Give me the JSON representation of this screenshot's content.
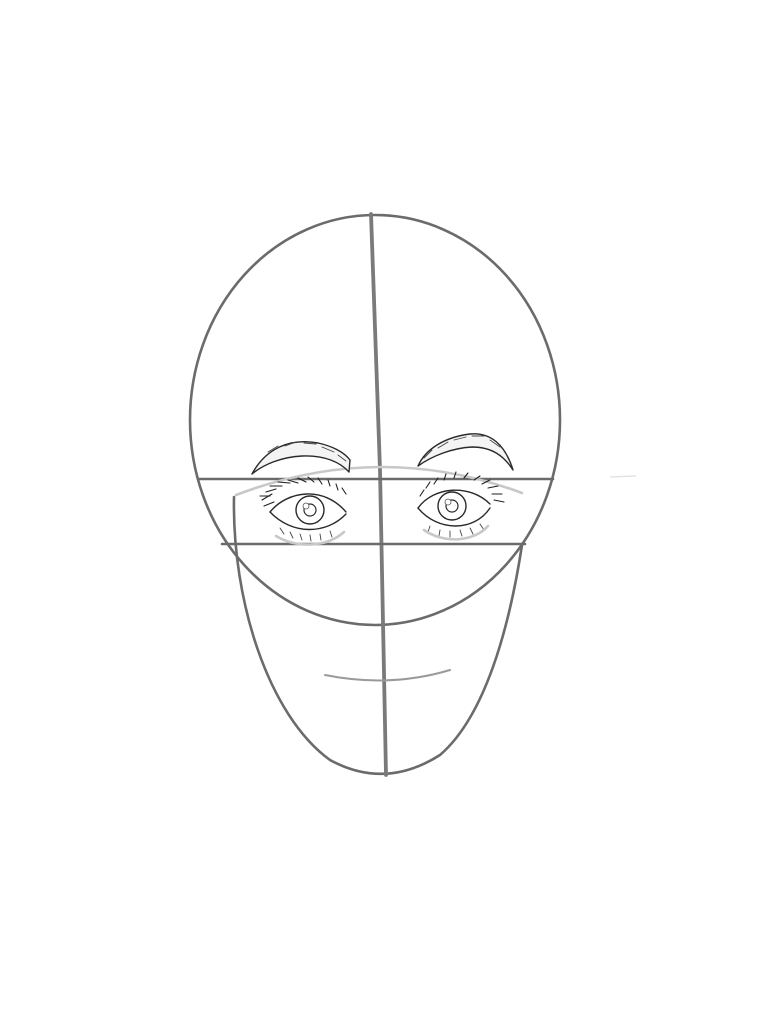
{
  "drawing": {
    "subject": "face-proportion-sketch",
    "colors": {
      "background": "#ffffff",
      "guide_line": "#6b6b6b",
      "ink": "#2a2a2a"
    }
  }
}
